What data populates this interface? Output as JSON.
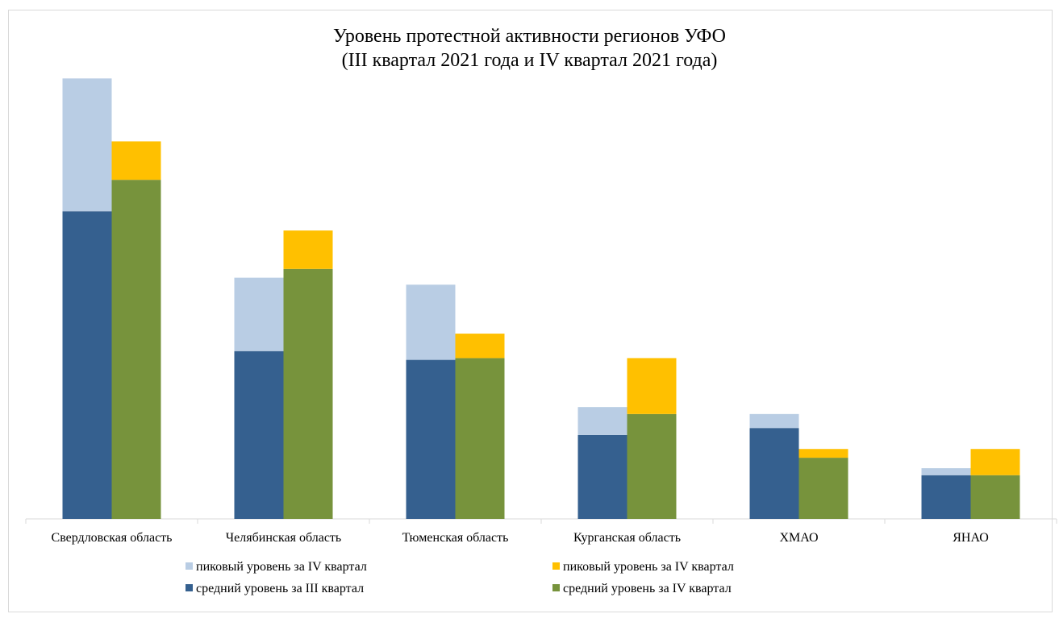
{
  "chart_data": {
    "type": "bar",
    "stacked": true,
    "title": "Уровень протестной активности регионов УФО",
    "subtitle": "(III квартал 2021 года и IV квартал 2021 года)",
    "categories": [
      "Свердловская область",
      "Челябинская область",
      "Тюменская область",
      "Курганская область",
      "ХМАО",
      "ЯНАО"
    ],
    "groups": [
      {
        "base": {
          "name": "средний уровень за III квартал",
          "color": "#35608F",
          "values": [
            8.8,
            4.8,
            4.55,
            2.4,
            2.6,
            1.25
          ]
        },
        "peak": {
          "name": "пиковый уровень за IV квартал",
          "color": "#B9CDE4",
          "values": [
            3.8,
            2.1,
            2.15,
            0.8,
            0.4,
            0.2
          ]
        }
      },
      {
        "base": {
          "name": "средний уровень за IV квартал",
          "color": "#77933C",
          "values": [
            9.7,
            7.15,
            4.6,
            3.0,
            1.75,
            1.25
          ]
        },
        "peak": {
          "name": "пиковый уровень за IV квартал",
          "color": "#FFC000",
          "values": [
            1.1,
            1.1,
            0.7,
            1.6,
            0.25,
            0.75
          ]
        }
      }
    ],
    "ylim": [
      0,
      13
    ],
    "grid": false,
    "legend_position": "bottom"
  }
}
